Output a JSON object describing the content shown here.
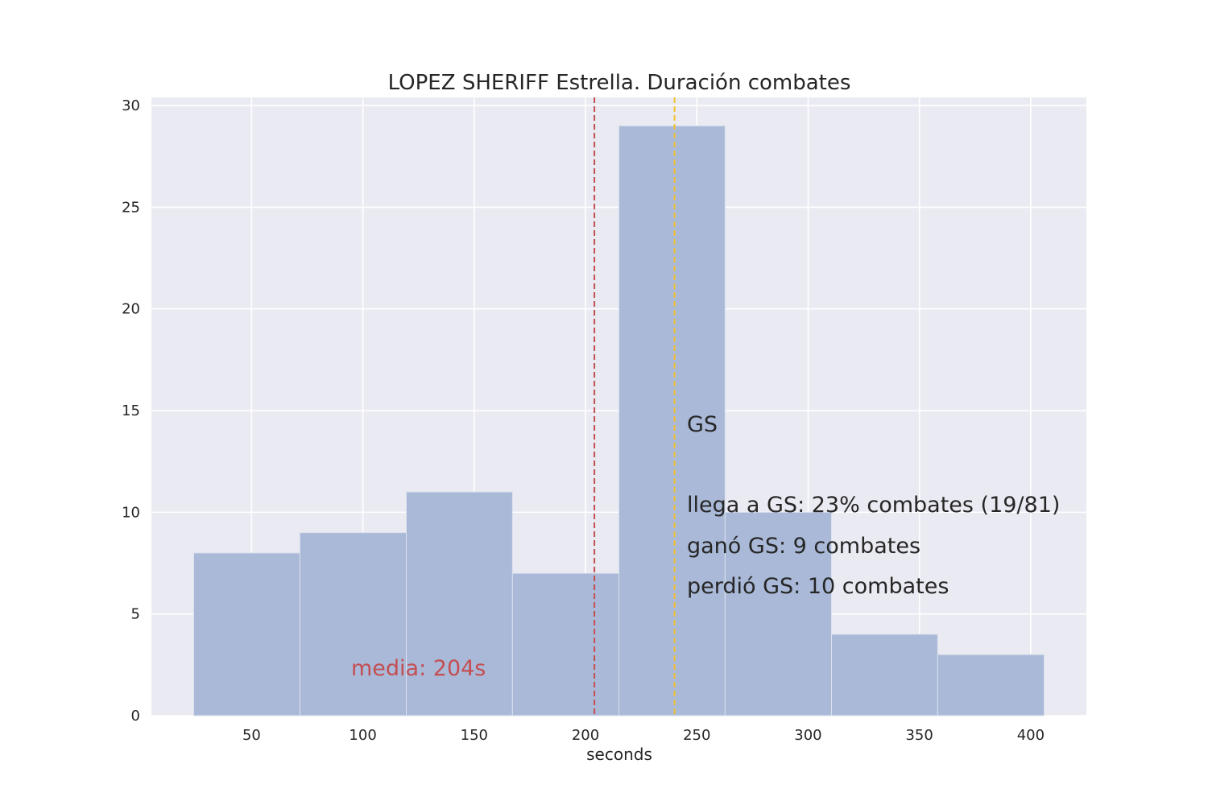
{
  "chart_data": {
    "type": "bar",
    "title": "LOPEZ SHERIFF Estrella. Duración combates",
    "xlabel": "seconds",
    "ylabel": "",
    "xlim": [
      5,
      425
    ],
    "ylim": [
      0,
      30.4
    ],
    "grid": true,
    "xticks": [
      50,
      100,
      150,
      200,
      250,
      300,
      350,
      400
    ],
    "yticks": [
      0,
      5,
      10,
      15,
      20,
      25,
      30
    ],
    "bins": [
      {
        "x0": 24,
        "x1": 71.7,
        "count": 8
      },
      {
        "x0": 71.7,
        "x1": 119.5,
        "count": 9
      },
      {
        "x0": 119.5,
        "x1": 167.2,
        "count": 11
      },
      {
        "x0": 167.2,
        "x1": 215,
        "count": 7
      },
      {
        "x0": 215,
        "x1": 262.7,
        "count": 29
      },
      {
        "x0": 262.7,
        "x1": 310.5,
        "count": 10
      },
      {
        "x0": 310.5,
        "x1": 358.2,
        "count": 4
      },
      {
        "x0": 358.2,
        "x1": 406,
        "count": 3
      }
    ],
    "vlines": [
      {
        "name": "mean",
        "x": 204,
        "color": "#c44e52"
      },
      {
        "name": "gs",
        "x": 240,
        "color": "#f2c12e"
      }
    ],
    "colors": {
      "bar": "#a9b9d7",
      "background": "#eaeaf2",
      "grid": "#ffffff"
    }
  },
  "annotations": {
    "mean_label": "media: 204s",
    "gs_label": "GS",
    "reach_gs": "llega a GS: 23% combates (19/81)",
    "won_gs": "ganó GS: 9 combates",
    "lost_gs": "perdió GS: 10 combates"
  }
}
